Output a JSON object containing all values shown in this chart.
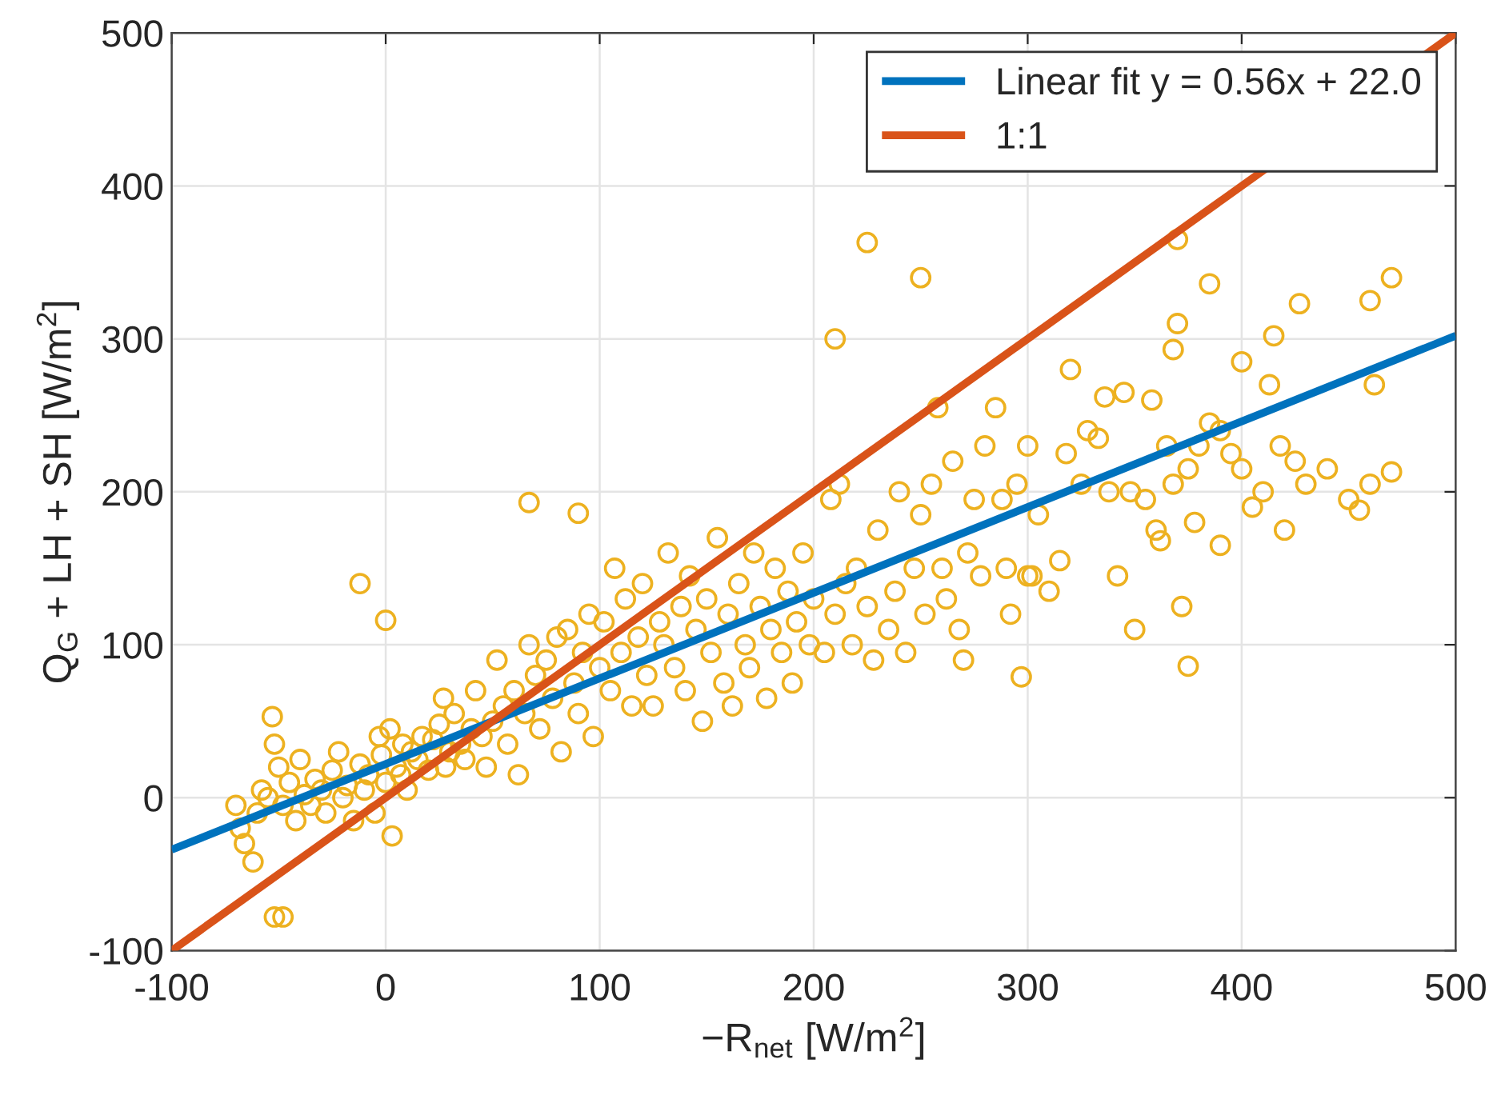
{
  "chart_data": {
    "type": "scatter",
    "xlabel": "−R$_{net}$ [W/m$^{2}$]",
    "ylabel": "Q$_{G}$ + LH + SH [W/m$^{2}$]",
    "xlim": [
      -100,
      500
    ],
    "ylim": [
      -100,
      500
    ],
    "xticks": [
      -100,
      0,
      100,
      200,
      300,
      400,
      500
    ],
    "yticks": [
      -100,
      0,
      100,
      200,
      300,
      400,
      500
    ],
    "grid": true,
    "legend": "top right",
    "series": [
      {
        "marker": "circle",
        "color": "#edb120",
        "x": [
          -52,
          -48,
          -12,
          0,
          67,
          90,
          225,
          250,
          210,
          370,
          385,
          470,
          460,
          427,
          375,
          297,
          270,
          415,
          400,
          370,
          368,
          390,
          455,
          460,
          470,
          462,
          413,
          378,
          360,
          350,
          372,
          300,
          318,
          336,
          345,
          -70,
          -68,
          -66,
          -62,
          -60,
          -58,
          -55,
          -53,
          -52,
          -50,
          -48,
          -45,
          -42,
          -40,
          -38,
          -35,
          -33,
          -30,
          -28,
          -25,
          -22,
          -20,
          -18,
          -15,
          -12,
          -10,
          -8,
          -5,
          -3,
          -2,
          0,
          2,
          3,
          5,
          7,
          8,
          10,
          12,
          15,
          17,
          20,
          22,
          25,
          27,
          28,
          30,
          32,
          35,
          37,
          40,
          42,
          45,
          47,
          50,
          52,
          55,
          57,
          60,
          62,
          65,
          67,
          70,
          72,
          75,
          78,
          80,
          82,
          85,
          88,
          90,
          92,
          95,
          97,
          100,
          102,
          105,
          107,
          110,
          112,
          115,
          118,
          120,
          122,
          125,
          128,
          130,
          132,
          135,
          138,
          140,
          142,
          145,
          148,
          150,
          152,
          155,
          158,
          160,
          162,
          165,
          168,
          170,
          172,
          175,
          178,
          180,
          182,
          185,
          188,
          190,
          192,
          195,
          198,
          200,
          205,
          208,
          210,
          212,
          215,
          218,
          220,
          225,
          228,
          230,
          235,
          238,
          240,
          243,
          247,
          250,
          252,
          255,
          258,
          260,
          262,
          265,
          268,
          272,
          275,
          278,
          280,
          285,
          288,
          290,
          292,
          295,
          300,
          302,
          305,
          310,
          315,
          320,
          325,
          328,
          333,
          338,
          342,
          348,
          355,
          358,
          362,
          365,
          368,
          375,
          380,
          385,
          390,
          395,
          400,
          405,
          410,
          418,
          420,
          425,
          430,
          440,
          450
        ],
        "values": [
          -78,
          -78,
          140,
          116,
          193,
          186,
          363,
          340,
          300,
          365,
          336,
          340,
          325,
          323,
          86,
          79,
          90,
          302,
          285,
          310,
          293,
          240,
          188,
          205,
          213,
          270,
          270,
          180,
          175,
          110,
          125,
          145,
          225,
          262,
          265,
          -5,
          -20,
          -30,
          -42,
          -10,
          5,
          0,
          53,
          35,
          20,
          -5,
          10,
          -15,
          25,
          2,
          -5,
          12,
          5,
          -10,
          18,
          30,
          0,
          8,
          -15,
          22,
          5,
          15,
          -10,
          40,
          28,
          10,
          45,
          -25,
          20,
          15,
          35,
          5,
          30,
          25,
          40,
          18,
          38,
          48,
          65,
          20,
          30,
          55,
          35,
          25,
          45,
          70,
          40,
          20,
          50,
          90,
          60,
          35,
          70,
          15,
          55,
          100,
          80,
          45,
          90,
          65,
          105,
          30,
          110,
          75,
          55,
          95,
          120,
          40,
          85,
          115,
          70,
          150,
          95,
          130,
          60,
          105,
          140,
          80,
          60,
          115,
          100,
          160,
          85,
          125,
          70,
          145,
          110,
          50,
          130,
          95,
          170,
          75,
          120,
          60,
          140,
          100,
          85,
          160,
          125,
          65,
          110,
          150,
          95,
          135,
          75,
          115,
          160,
          100,
          130,
          95,
          195,
          120,
          205,
          140,
          100,
          150,
          125,
          90,
          175,
          110,
          135,
          200,
          95,
          150,
          185,
          120,
          205,
          255,
          150,
          130,
          220,
          110,
          160,
          195,
          145,
          230,
          255,
          195,
          150,
          120,
          205,
          230,
          145,
          185,
          135,
          155,
          280,
          205,
          240,
          235,
          200,
          145,
          200,
          195,
          260,
          168,
          230,
          205,
          215,
          230,
          245,
          165,
          225,
          215,
          190,
          200,
          230,
          175,
          220,
          205,
          215,
          195
        ]
      },
      {
        "type": "line",
        "name": "Linear fit y = 0.56x + 22.0",
        "color": "#0072bd",
        "x": [
          -100,
          500
        ],
        "values": [
          -34,
          302
        ]
      },
      {
        "type": "line",
        "name": "1:1",
        "color": "#d95319",
        "x": [
          -100,
          500
        ],
        "values": [
          -100,
          500
        ]
      }
    ]
  }
}
